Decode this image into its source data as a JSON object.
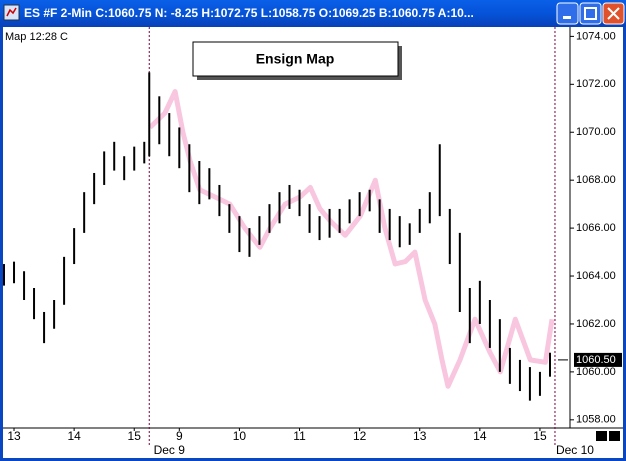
{
  "window_title": "ES #F 2-Min C:1060.75 N: -8.25 H:1072.75 L:1058.75 O:1069.25 B:1060.75 A:10...",
  "chart_data": {
    "type": "ohlc",
    "title": "Ensign Map",
    "corner_label": "Map 12:28 C",
    "bar_color": "#000000",
    "bars": {
      "x": [
        -0.167,
        0,
        0.167,
        0.333,
        0.5,
        0.667,
        0.833,
        1.0,
        1.167,
        1.333,
        1.5,
        1.667,
        1.833,
        2.0,
        2.167,
        2.25,
        2.417,
        2.583,
        2.75,
        2.917,
        3.083,
        3.25,
        3.417,
        3.583,
        3.75,
        3.917,
        4.083,
        4.25,
        4.417,
        4.583,
        4.75,
        4.917,
        5.083,
        5.25,
        5.417,
        5.583,
        5.75,
        5.917,
        6.083,
        6.25,
        6.417,
        6.583,
        6.75,
        6.917,
        7.083,
        7.25,
        7.417,
        7.583,
        7.75,
        7.917,
        8.083,
        8.25,
        8.417,
        8.583,
        8.75,
        8.917
      ],
      "high": [
        1064.5,
        1064.6,
        1064.2,
        1063.5,
        1062.5,
        1063.0,
        1064.8,
        1066.0,
        1067.5,
        1068.3,
        1069.2,
        1069.6,
        1069.0,
        1069.4,
        1069.6,
        1072.5,
        1071.5,
        1070.8,
        1070.2,
        1069.5,
        1068.8,
        1068.5,
        1067.8,
        1067.0,
        1066.5,
        1066.0,
        1066.5,
        1067.0,
        1067.5,
        1067.8,
        1067.6,
        1067.0,
        1066.5,
        1066.8,
        1066.8,
        1067.2,
        1067.5,
        1067.6,
        1067.2,
        1066.8,
        1066.5,
        1066.2,
        1066.8,
        1067.5,
        1069.5,
        1066.8,
        1065.8,
        1063.5,
        1063.8,
        1063.0,
        1062.2,
        1061.0,
        1060.5,
        1060.2,
        1060.0,
        1060.8
      ],
      "low": [
        1063.6,
        1063.7,
        1063.0,
        1062.2,
        1061.2,
        1061.8,
        1062.8,
        1064.5,
        1065.8,
        1067.0,
        1067.8,
        1068.4,
        1068.0,
        1068.4,
        1068.7,
        1069.0,
        1069.5,
        1069.0,
        1068.5,
        1067.5,
        1067.0,
        1067.2,
        1066.5,
        1065.8,
        1065.0,
        1064.8,
        1065.3,
        1065.8,
        1066.2,
        1066.8,
        1066.5,
        1065.8,
        1065.5,
        1065.6,
        1065.8,
        1066.2,
        1066.5,
        1066.7,
        1065.8,
        1065.5,
        1065.2,
        1065.3,
        1065.8,
        1066.2,
        1066.5,
        1064.5,
        1062.5,
        1061.2,
        1062.0,
        1061.0,
        1060.0,
        1059.5,
        1059.2,
        1058.8,
        1059.0,
        1059.8
      ]
    },
    "map_line": {
      "color": "#f9c6df",
      "x": [
        2.26,
        2.51,
        2.68,
        2.81,
        2.93,
        3.09,
        3.34,
        3.59,
        3.84,
        4.09,
        4.26,
        4.51,
        4.76,
        4.93,
        5.09,
        5.26,
        5.51,
        5.76,
        6.01,
        6.17,
        6.34,
        6.51,
        6.67,
        6.84,
        7.0,
        7.12,
        7.22,
        7.42,
        7.67,
        7.92,
        8.09,
        8.34,
        8.59,
        8.84,
        8.95
      ],
      "values": [
        1070.2,
        1070.8,
        1071.7,
        1070.0,
        1068.8,
        1067.6,
        1067.3,
        1067.0,
        1066.0,
        1065.2,
        1066.0,
        1067.0,
        1067.3,
        1067.7,
        1066.8,
        1066.3,
        1065.7,
        1066.5,
        1068.0,
        1066.0,
        1064.5,
        1064.6,
        1065.0,
        1063.0,
        1062.0,
        1060.5,
        1059.4,
        1060.5,
        1062.2,
        1060.8,
        1060.0,
        1062.2,
        1060.5,
        1060.4,
        1062.2
      ]
    },
    "xlim": [
      -0.2,
      9.25
    ],
    "xticks": [
      {
        "value": 0,
        "label": "13"
      },
      {
        "value": 1,
        "label": "14"
      },
      {
        "value": 2,
        "label": "15"
      },
      {
        "value": 2.75,
        "label": "9"
      },
      {
        "value": 3.75,
        "label": "10"
      },
      {
        "value": 4.75,
        "label": "11"
      },
      {
        "value": 5.75,
        "label": "12"
      },
      {
        "value": 6.75,
        "label": "13"
      },
      {
        "value": 7.75,
        "label": "14"
      },
      {
        "value": 8.75,
        "label": "15"
      }
    ],
    "session_breaks": [
      {
        "value": 2.25,
        "label": "Dec 9"
      },
      {
        "value": 9.0,
        "label": "Dec 10"
      }
    ],
    "ylim": [
      1057.7,
      1074.35
    ],
    "yticks": [
      {
        "value": 1058,
        "label": "1058.00"
      },
      {
        "value": 1060,
        "label": "1060.00"
      },
      {
        "value": 1062,
        "label": "1062.00"
      },
      {
        "value": 1064,
        "label": "1064.00"
      },
      {
        "value": 1066,
        "label": "1066.00"
      },
      {
        "value": 1068,
        "label": "1068.00"
      },
      {
        "value": 1070,
        "label": "1070.00"
      },
      {
        "value": 1072,
        "label": "1072.00"
      },
      {
        "value": 1074,
        "label": "1074.00"
      }
    ],
    "last_price": {
      "value": 1060.5,
      "label": "1060.50"
    }
  }
}
